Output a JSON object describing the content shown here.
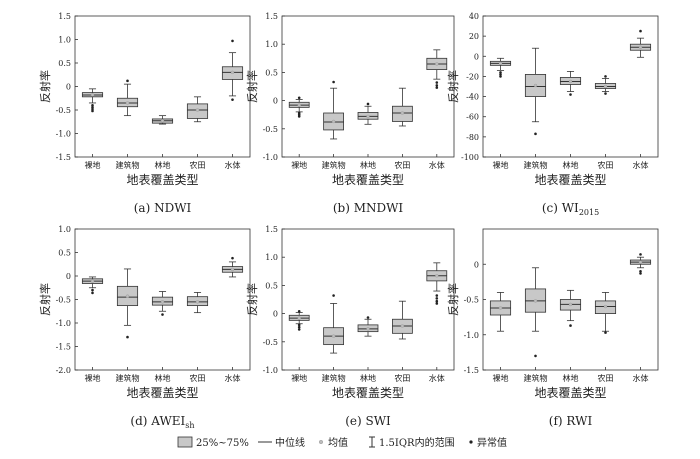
{
  "legend": {
    "box_label": "25%~75%",
    "median_label": "中位线",
    "mean_label": "均值",
    "range_label": "1.5IQR内的范围",
    "outlier_label": "异常值"
  },
  "colors": {
    "box_fill": "#c8c8c8",
    "stroke": "#333333",
    "mean_dot": "#bdbdbd"
  },
  "chart_data": [
    {
      "type": "box",
      "caption": "(a) NDWI",
      "ylabel": "反射率",
      "xlabel": "地表覆盖类型",
      "ylim": [
        -1.5,
        1.5
      ],
      "yticks": [
        -1.5,
        -1.0,
        -0.5,
        0,
        0.5,
        1.0,
        1.5
      ],
      "ytick_labels": [
        "-1.5",
        "-1.0",
        "-0.5",
        "0",
        "0.5",
        "1.0",
        "1.5"
      ],
      "categories": [
        "裸地",
        "建筑物",
        "林地",
        "农田",
        "水体"
      ],
      "boxes": [
        {
          "whisker_low": -0.35,
          "q1": -0.22,
          "median": -0.18,
          "q3": -0.13,
          "whisker_high": -0.05,
          "mean": -0.18,
          "outliers": [
            -0.4,
            -0.44,
            -0.48,
            -0.52
          ]
        },
        {
          "whisker_low": -0.62,
          "q1": -0.43,
          "median": -0.35,
          "q3": -0.25,
          "whisker_high": 0.05,
          "mean": -0.35,
          "outliers": [
            0.12
          ]
        },
        {
          "whisker_low": -0.8,
          "q1": -0.78,
          "median": -0.73,
          "q3": -0.69,
          "whisker_high": -0.62,
          "mean": -0.73,
          "outliers": []
        },
        {
          "whisker_low": -0.75,
          "q1": -0.68,
          "median": -0.5,
          "q3": -0.37,
          "whisker_high": -0.22,
          "mean": -0.5,
          "outliers": []
        },
        {
          "whisker_low": -0.2,
          "q1": 0.15,
          "median": 0.3,
          "q3": 0.42,
          "whisker_high": 0.72,
          "mean": 0.3,
          "outliers": [
            0.97,
            -0.28
          ]
        }
      ]
    },
    {
      "type": "box",
      "caption": "(b) MNDWI",
      "ylabel": "反射率",
      "xlabel": "地表覆盖类型",
      "ylim": [
        -1.0,
        1.5
      ],
      "yticks": [
        -1.0,
        -0.5,
        0,
        0.5,
        1.0,
        1.5
      ],
      "ytick_labels": [
        "-1.0",
        "-0.5",
        "0",
        "0.5",
        "1.0",
        "1.5"
      ],
      "categories": [
        "裸地",
        "建筑物",
        "林地",
        "农田",
        "水体"
      ],
      "boxes": [
        {
          "whisker_low": -0.2,
          "q1": -0.12,
          "median": -0.08,
          "q3": -0.03,
          "whisker_high": 0.02,
          "mean": -0.08,
          "outliers": [
            -0.22,
            -0.25,
            -0.28,
            0.05
          ]
        },
        {
          "whisker_low": -0.68,
          "q1": -0.52,
          "median": -0.38,
          "q3": -0.22,
          "whisker_high": 0.22,
          "mean": -0.37,
          "outliers": [
            0.33
          ]
        },
        {
          "whisker_low": -0.42,
          "q1": -0.33,
          "median": -0.28,
          "q3": -0.21,
          "whisker_high": -0.1,
          "mean": -0.28,
          "outliers": [
            -0.06
          ]
        },
        {
          "whisker_low": -0.45,
          "q1": -0.37,
          "median": -0.22,
          "q3": -0.1,
          "whisker_high": 0.22,
          "mean": -0.22,
          "outliers": []
        },
        {
          "whisker_low": 0.38,
          "q1": 0.55,
          "median": 0.65,
          "q3": 0.75,
          "whisker_high": 0.9,
          "mean": 0.65,
          "outliers": [
            0.32,
            0.27,
            0.23
          ]
        }
      ]
    },
    {
      "type": "box",
      "caption": "(c) WI",
      "caption_sub": "2015",
      "ylabel": "反射率",
      "xlabel": "地表覆盖类型",
      "ylim": [
        -100,
        40
      ],
      "yticks": [
        -100,
        -80,
        -60,
        -40,
        -20,
        0,
        20,
        40
      ],
      "ytick_labels": [
        "-100",
        "-80",
        "-60",
        "-40",
        "-20",
        "0",
        "20",
        "40"
      ],
      "categories": [
        "裸地",
        "建筑物",
        "林地",
        "农田",
        "水体"
      ],
      "boxes": [
        {
          "whisker_low": -14,
          "q1": -9,
          "median": -7,
          "q3": -5,
          "whisker_high": -2,
          "mean": -7,
          "outliers": [
            -16,
            -18,
            -20
          ]
        },
        {
          "whisker_low": -65,
          "q1": -40,
          "median": -30,
          "q3": -18,
          "whisker_high": 8,
          "mean": -29,
          "outliers": [
            -77
          ]
        },
        {
          "whisker_low": -35,
          "q1": -28,
          "median": -25,
          "q3": -21,
          "whisker_high": -15,
          "mean": -25,
          "outliers": [
            -38
          ]
        },
        {
          "whisker_low": -35,
          "q1": -32,
          "median": -30,
          "q3": -27,
          "whisker_high": -22,
          "mean": -30,
          "outliers": [
            -37,
            -20
          ]
        },
        {
          "whisker_low": -1,
          "q1": 6,
          "median": 9,
          "q3": 12,
          "whisker_high": 18,
          "mean": 9,
          "outliers": [
            25
          ]
        }
      ]
    },
    {
      "type": "box",
      "caption": "(d) AWEI",
      "caption_sub": "sh",
      "ylabel": "反射率",
      "xlabel": "地表覆盖类型",
      "ylim": [
        -2.0,
        1.0
      ],
      "yticks": [
        -2.0,
        -1.5,
        -1.0,
        -0.5,
        0,
        0.5,
        1.0
      ],
      "ytick_labels": [
        "-2.0",
        "-1.5",
        "-1.0",
        "-0.5",
        "0",
        "0.5",
        "1.0"
      ],
      "categories": [
        "裸地",
        "建筑物",
        "林地",
        "农田",
        "水体"
      ],
      "boxes": [
        {
          "whisker_low": -0.25,
          "q1": -0.16,
          "median": -0.11,
          "q3": -0.06,
          "whisker_high": -0.02,
          "mean": -0.11,
          "outliers": [
            -0.3,
            -0.36
          ]
        },
        {
          "whisker_low": -1.05,
          "q1": -0.63,
          "median": -0.45,
          "q3": -0.22,
          "whisker_high": 0.15,
          "mean": -0.43,
          "outliers": [
            -1.3
          ]
        },
        {
          "whisker_low": -0.75,
          "q1": -0.62,
          "median": -0.55,
          "q3": -0.45,
          "whisker_high": -0.33,
          "mean": -0.55,
          "outliers": [
            -0.82
          ]
        },
        {
          "whisker_low": -0.78,
          "q1": -0.63,
          "median": -0.55,
          "q3": -0.44,
          "whisker_high": -0.35,
          "mean": -0.55,
          "outliers": []
        },
        {
          "whisker_low": -0.02,
          "q1": 0.08,
          "median": 0.14,
          "q3": 0.2,
          "whisker_high": 0.3,
          "mean": 0.14,
          "outliers": [
            0.38
          ]
        }
      ]
    },
    {
      "type": "box",
      "caption": "(e) SWI",
      "ylabel": "反射率",
      "xlabel": "地表覆盖类型",
      "ylim": [
        -1.0,
        1.5
      ],
      "yticks": [
        -1.0,
        -0.5,
        0,
        0.5,
        1.0,
        1.5
      ],
      "ytick_labels": [
        "-1.0",
        "-0.5",
        "0",
        "0.5",
        "1.0",
        "1.5"
      ],
      "categories": [
        "裸地",
        "建筑物",
        "林地",
        "农田",
        "水体"
      ],
      "boxes": [
        {
          "whisker_low": -0.18,
          "q1": -0.12,
          "median": -0.08,
          "q3": -0.03,
          "whisker_high": 0.02,
          "mean": -0.08,
          "outliers": [
            -0.2,
            -0.24,
            -0.28,
            0.04
          ]
        },
        {
          "whisker_low": -0.7,
          "q1": -0.55,
          "median": -0.4,
          "q3": -0.25,
          "whisker_high": 0.18,
          "mean": -0.4,
          "outliers": [
            0.32
          ]
        },
        {
          "whisker_low": -0.4,
          "q1": -0.32,
          "median": -0.27,
          "q3": -0.2,
          "whisker_high": -0.1,
          "mean": -0.27,
          "outliers": [
            -0.07
          ]
        },
        {
          "whisker_low": -0.45,
          "q1": -0.35,
          "median": -0.22,
          "q3": -0.1,
          "whisker_high": 0.22,
          "mean": -0.22,
          "outliers": []
        },
        {
          "whisker_low": 0.4,
          "q1": 0.58,
          "median": 0.67,
          "q3": 0.76,
          "whisker_high": 0.9,
          "mean": 0.67,
          "outliers": [
            0.32,
            0.27,
            0.22,
            0.18
          ]
        }
      ]
    },
    {
      "type": "box",
      "caption": "(f) RWI",
      "ylabel": "反射率",
      "xlabel": "地表覆盖类型",
      "ylim": [
        -1.5,
        0.5
      ],
      "yticks": [
        -1.5,
        -1.0,
        -0.5,
        0
      ],
      "ytick_labels": [
        "-1.5",
        "-1.0",
        "-0.5",
        "0"
      ],
      "categories": [
        "裸地",
        "建筑物",
        "林地",
        "农田",
        "水体"
      ],
      "boxes": [
        {
          "whisker_low": -0.95,
          "q1": -0.72,
          "median": -0.62,
          "q3": -0.52,
          "whisker_high": -0.4,
          "mean": -0.62,
          "outliers": []
        },
        {
          "whisker_low": -0.95,
          "q1": -0.68,
          "median": -0.52,
          "q3": -0.35,
          "whisker_high": -0.05,
          "mean": -0.52,
          "outliers": [
            -1.3
          ]
        },
        {
          "whisker_low": -0.8,
          "q1": -0.65,
          "median": -0.57,
          "q3": -0.5,
          "whisker_high": -0.37,
          "mean": -0.57,
          "outliers": [
            -0.87
          ]
        },
        {
          "whisker_low": -0.95,
          "q1": -0.7,
          "median": -0.6,
          "q3": -0.52,
          "whisker_high": -0.4,
          "mean": -0.6,
          "outliers": [
            -0.97
          ]
        },
        {
          "whisker_low": -0.05,
          "q1": 0.0,
          "median": 0.03,
          "q3": 0.06,
          "whisker_high": 0.1,
          "mean": 0.03,
          "outliers": [
            0.14,
            -0.1,
            -0.13
          ]
        }
      ]
    }
  ]
}
